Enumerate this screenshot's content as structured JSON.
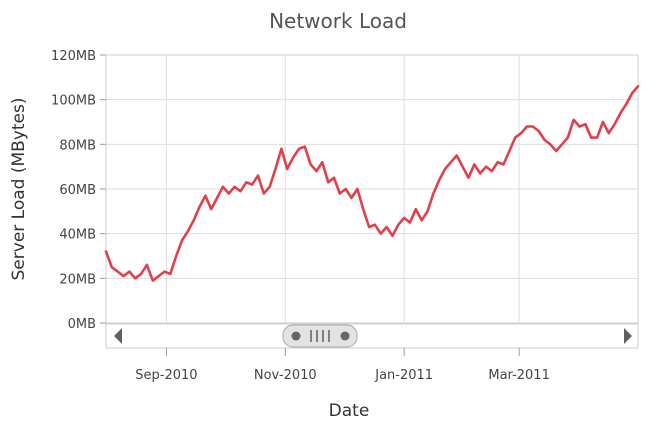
{
  "chart_data": {
    "type": "line",
    "title": "Network Load",
    "xlabel": "Date",
    "ylabel": "Server Load (MBytes)",
    "y_tick_labels": [
      "0MB",
      "20MB",
      "40MB",
      "60MB",
      "80MB",
      "100MB",
      "120MB"
    ],
    "ylim": [
      0,
      120
    ],
    "xlim": [
      "2010-08-01",
      "2011-05-01"
    ],
    "x_ticks": [
      {
        "date": "2010-09-01",
        "label": "Sep-2010"
      },
      {
        "date": "2010-11-01",
        "label": "Nov-2010"
      },
      {
        "date": "2011-01-01",
        "label": "Jan-2011"
      },
      {
        "date": "2011-03-01",
        "label": "Mar-2011"
      }
    ],
    "grid": true,
    "legend": "none",
    "series": [
      {
        "color": "#e0404a",
        "points": [
          [
            "2010-08-01",
            32
          ],
          [
            "2010-08-04",
            25
          ],
          [
            "2010-08-07",
            23
          ],
          [
            "2010-08-10",
            21
          ],
          [
            "2010-08-13",
            23
          ],
          [
            "2010-08-16",
            20
          ],
          [
            "2010-08-19",
            22
          ],
          [
            "2010-08-22",
            26
          ],
          [
            "2010-08-25",
            19
          ],
          [
            "2010-08-28",
            21
          ],
          [
            "2010-08-31",
            23
          ],
          [
            "2010-09-03",
            22
          ],
          [
            "2010-09-06",
            30
          ],
          [
            "2010-09-09",
            37
          ],
          [
            "2010-09-12",
            41
          ],
          [
            "2010-09-15",
            46
          ],
          [
            "2010-09-18",
            52
          ],
          [
            "2010-09-21",
            57
          ],
          [
            "2010-09-24",
            51
          ],
          [
            "2010-09-27",
            56
          ],
          [
            "2010-09-30",
            61
          ],
          [
            "2010-10-03",
            58
          ],
          [
            "2010-10-06",
            61
          ],
          [
            "2010-10-09",
            59
          ],
          [
            "2010-10-12",
            63
          ],
          [
            "2010-10-15",
            62
          ],
          [
            "2010-10-18",
            66
          ],
          [
            "2010-10-21",
            58
          ],
          [
            "2010-10-24",
            61
          ],
          [
            "2010-10-27",
            69
          ],
          [
            "2010-10-30",
            78
          ],
          [
            "2010-11-02",
            69
          ],
          [
            "2010-11-05",
            74
          ],
          [
            "2010-11-08",
            78
          ],
          [
            "2010-11-11",
            79
          ],
          [
            "2010-11-14",
            71
          ],
          [
            "2010-11-17",
            68
          ],
          [
            "2010-11-20",
            72
          ],
          [
            "2010-11-23",
            63
          ],
          [
            "2010-11-26",
            65
          ],
          [
            "2010-11-29",
            58
          ],
          [
            "2010-12-02",
            60
          ],
          [
            "2010-12-05",
            56
          ],
          [
            "2010-12-08",
            60
          ],
          [
            "2010-12-11",
            51
          ],
          [
            "2010-12-14",
            43
          ],
          [
            "2010-12-17",
            44
          ],
          [
            "2010-12-20",
            40
          ],
          [
            "2010-12-23",
            43
          ],
          [
            "2010-12-26",
            39
          ],
          [
            "2010-12-29",
            44
          ],
          [
            "2011-01-01",
            47
          ],
          [
            "2011-01-04",
            45
          ],
          [
            "2011-01-07",
            51
          ],
          [
            "2011-01-10",
            46
          ],
          [
            "2011-01-13",
            50
          ],
          [
            "2011-01-16",
            58
          ],
          [
            "2011-01-19",
            64
          ],
          [
            "2011-01-22",
            69
          ],
          [
            "2011-01-25",
            72
          ],
          [
            "2011-01-28",
            75
          ],
          [
            "2011-01-31",
            70
          ],
          [
            "2011-02-03",
            65
          ],
          [
            "2011-02-06",
            71
          ],
          [
            "2011-02-09",
            67
          ],
          [
            "2011-02-12",
            70
          ],
          [
            "2011-02-15",
            68
          ],
          [
            "2011-02-18",
            72
          ],
          [
            "2011-02-21",
            71
          ],
          [
            "2011-02-24",
            77
          ],
          [
            "2011-02-27",
            83
          ],
          [
            "2011-03-02",
            85
          ],
          [
            "2011-03-05",
            88
          ],
          [
            "2011-03-08",
            88
          ],
          [
            "2011-03-11",
            86
          ],
          [
            "2011-03-14",
            82
          ],
          [
            "2011-03-17",
            80
          ],
          [
            "2011-03-20",
            77
          ],
          [
            "2011-03-23",
            80
          ],
          [
            "2011-03-26",
            83
          ],
          [
            "2011-03-29",
            91
          ],
          [
            "2011-04-01",
            88
          ],
          [
            "2011-04-04",
            89
          ],
          [
            "2011-04-07",
            83
          ],
          [
            "2011-04-10",
            83
          ],
          [
            "2011-04-13",
            90
          ],
          [
            "2011-04-16",
            85
          ],
          [
            "2011-04-19",
            89
          ],
          [
            "2011-04-22",
            94
          ],
          [
            "2011-04-25",
            98
          ],
          [
            "2011-04-28",
            103
          ],
          [
            "2011-05-01",
            106
          ]
        ]
      }
    ]
  },
  "scrollbar": {
    "left_arrow_icon": "triangle-left-icon",
    "right_arrow_icon": "triangle-right-icon",
    "thumb_grip_icon": "grip-lines-icon"
  }
}
